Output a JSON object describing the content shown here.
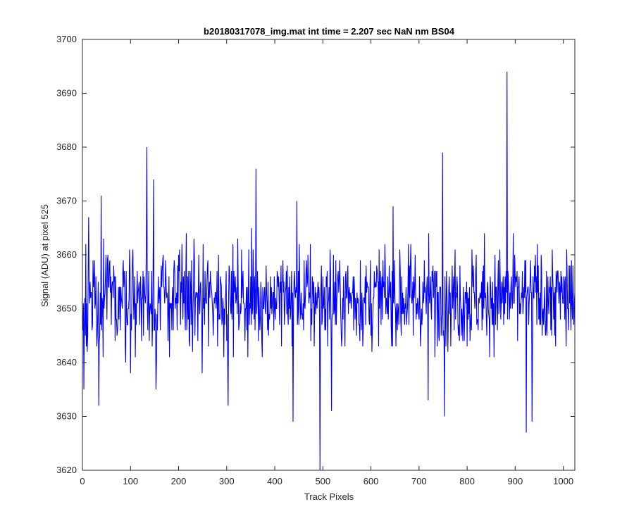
{
  "chart_data": {
    "type": "line",
    "title": "b20180317078_img.mat int time = 2.207 sec  NaN nm BS04",
    "xlabel": "Track Pixels",
    "ylabel": "Signal (ADU) at pixel 525",
    "xlim": [
      0,
      1024
    ],
    "ylim": [
      3620,
      3700
    ],
    "xticks": [
      0,
      100,
      200,
      300,
      400,
      500,
      600,
      700,
      800,
      900,
      1000
    ],
    "yticks": [
      3620,
      3630,
      3640,
      3650,
      3660,
      3670,
      3680,
      3690,
      3700
    ],
    "grid": false,
    "series_color": "#0000ff",
    "frame_color": "#262626",
    "series": [
      {
        "points_count": 1024,
        "mean_approx": 3652,
        "spread_approx": 6,
        "notable_points": [
          {
            "x": 2,
            "y": 3635
          },
          {
            "x": 12,
            "y": 3667
          },
          {
            "x": 33,
            "y": 3632
          },
          {
            "x": 38,
            "y": 3671
          },
          {
            "x": 133,
            "y": 3680
          },
          {
            "x": 147,
            "y": 3674
          },
          {
            "x": 152,
            "y": 3635
          },
          {
            "x": 248,
            "y": 3638
          },
          {
            "x": 302,
            "y": 3632
          },
          {
            "x": 360,
            "y": 3676
          },
          {
            "x": 437,
            "y": 3629
          },
          {
            "x": 445,
            "y": 3670
          },
          {
            "x": 493,
            "y": 3620
          },
          {
            "x": 517,
            "y": 3631
          },
          {
            "x": 645,
            "y": 3669
          },
          {
            "x": 718,
            "y": 3633
          },
          {
            "x": 748,
            "y": 3679
          },
          {
            "x": 752,
            "y": 3630
          },
          {
            "x": 882,
            "y": 3694
          },
          {
            "x": 922,
            "y": 3627
          },
          {
            "x": 934,
            "y": 3629
          }
        ]
      }
    ]
  }
}
